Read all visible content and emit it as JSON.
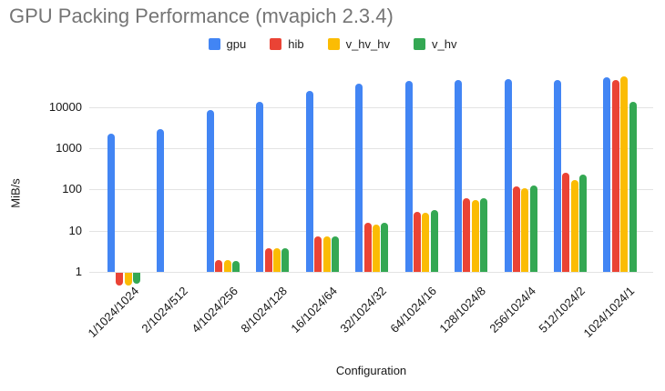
{
  "chart_data": {
    "type": "bar",
    "title": "GPU Packing Performance (mvapich 2.3.4)",
    "xlabel": "Configuration",
    "ylabel": "MiB/s",
    "y_scale": "log",
    "y_ticks": [
      1,
      10,
      100,
      1000,
      10000
    ],
    "ylim": [
      0.4,
      60000
    ],
    "grid": "horizontal-only",
    "legend_position": "top-center",
    "categories": [
      "1/1024/1024",
      "2/1024/512",
      "4/1024/256",
      "8/1024/128",
      "16/1024/64",
      "32/1024/32",
      "64/1024/16",
      "128/1024/8",
      "256/1024/4",
      "512/1024/2",
      "1024/1024/1"
    ],
    "series": [
      {
        "name": "gpu",
        "color": "#4285F4",
        "values": [
          2300,
          2850,
          8500,
          13500,
          25000,
          37000,
          43000,
          46000,
          48000,
          45500,
          52000
        ]
      },
      {
        "name": "hib",
        "color": "#EA4335",
        "values": [
          0.5,
          null,
          1.9,
          3.7,
          7.4,
          15.5,
          29,
          62,
          120,
          250,
          45000
        ]
      },
      {
        "name": "v_hv_hv",
        "color": "#FBBC04",
        "values": [
          0.5,
          null,
          1.9,
          3.7,
          7.4,
          14,
          27,
          55,
          108,
          172,
          55000
        ]
      },
      {
        "name": "v_hv",
        "color": "#34A853",
        "values": [
          0.55,
          null,
          1.85,
          3.7,
          7.4,
          15.5,
          31,
          62,
          122,
          232,
          13500
        ]
      }
    ]
  },
  "style_colors": {
    "title": "#757575",
    "axis_text": "#161616",
    "legend_text": "#222222",
    "gridline": "#e3e3e3",
    "background": "#ffffff"
  }
}
